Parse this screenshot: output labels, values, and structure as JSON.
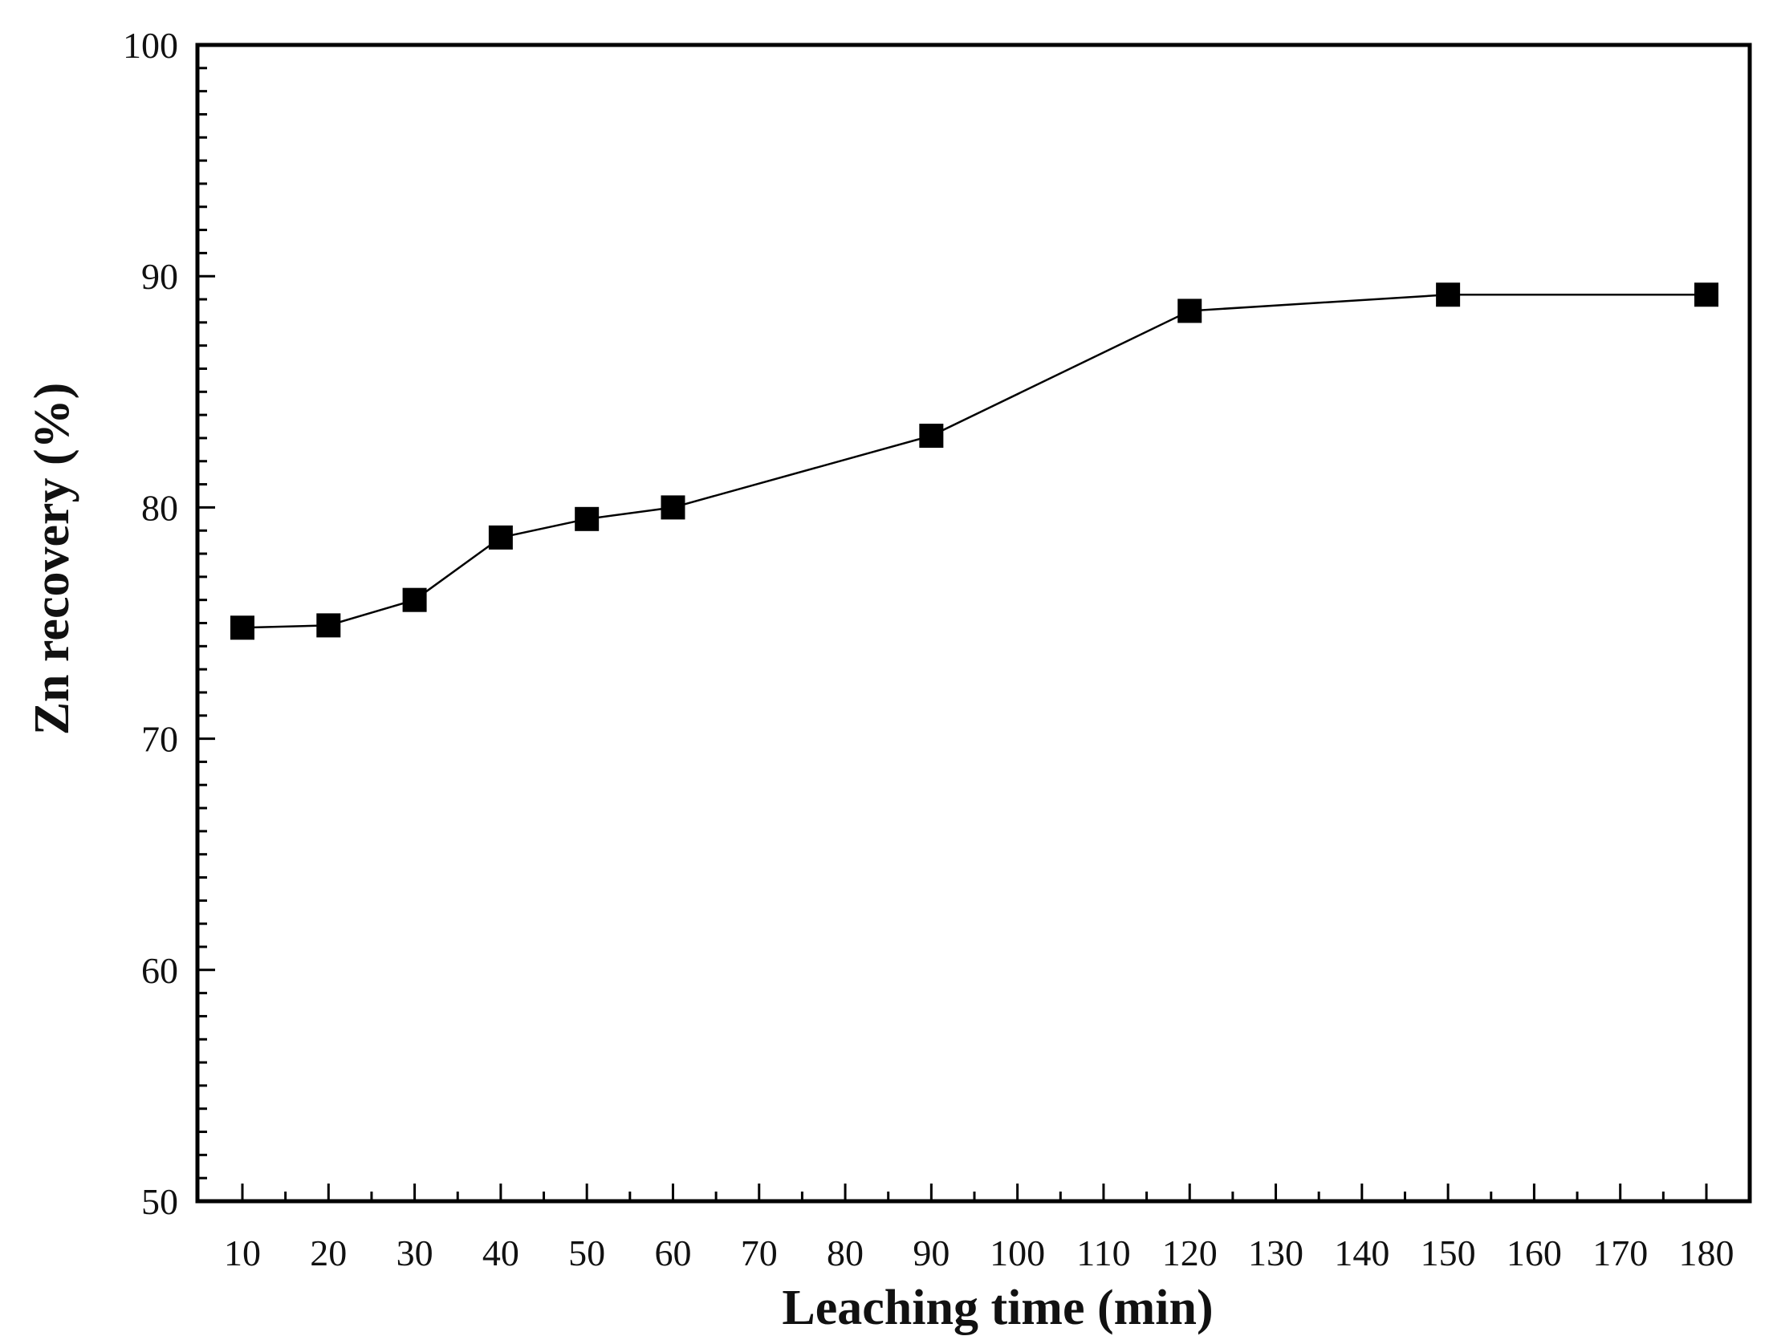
{
  "chart_data": {
    "type": "line",
    "xlabel": "Leaching time (min)",
    "ylabel": "Zn recovery (%)",
    "x_ticks": [
      10,
      20,
      30,
      40,
      50,
      60,
      70,
      80,
      90,
      100,
      110,
      120,
      130,
      140,
      150,
      160,
      170,
      180
    ],
    "y_ticks": [
      50,
      60,
      70,
      80,
      90,
      100
    ],
    "ylim": [
      50,
      100
    ],
    "grid": false,
    "marker": "square",
    "series": [
      {
        "x": [
          10,
          20,
          30,
          40,
          50,
          60,
          90,
          120,
          150,
          180
        ],
        "values": [
          74.8,
          74.9,
          76.0,
          78.7,
          79.5,
          80.0,
          83.1,
          88.5,
          89.2,
          89.2
        ],
        "color": "#000000"
      }
    ]
  }
}
